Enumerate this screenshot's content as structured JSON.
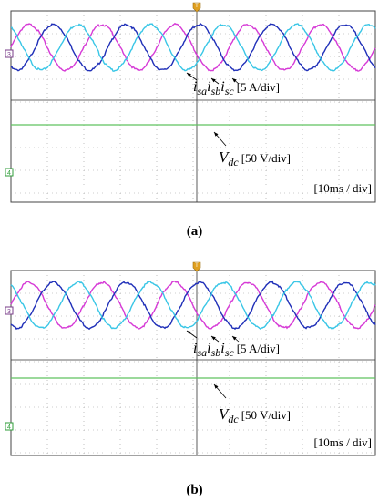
{
  "figure": {
    "panels": [
      {
        "label": "(a)",
        "marker": "T",
        "channels": [
          "3",
          "4"
        ],
        "current_label": {
          "parts": [
            "i",
            "sa",
            "i",
            "sb",
            "i",
            "sc"
          ],
          "scale": "[5 A/div]"
        },
        "voltage_label": {
          "parts": [
            "V",
            "dc"
          ],
          "scale": "[50 V/div]"
        },
        "timebase": "[10ms / div]"
      },
      {
        "label": "(b)",
        "marker": "T",
        "channels": [
          "3",
          "4"
        ],
        "current_label": {
          "parts": [
            "i",
            "sa",
            "i",
            "sb",
            "i",
            "sc"
          ],
          "scale": "[5 A/div]"
        },
        "voltage_label": {
          "parts": [
            "V",
            "dc"
          ],
          "scale": "[50 V/div]"
        },
        "timebase": "[10ms / div]"
      }
    ]
  },
  "colors": {
    "phase_a": "#d63ad6",
    "phase_b": "#1f2fb8",
    "phase_c": "#39c6e6",
    "vdc": "#5fc25f",
    "grid": "#9a9a9a",
    "channel3": "#7a3d8a",
    "channel4": "#2f9e3a",
    "marker": "#e0a020"
  },
  "chart_data": [
    {
      "type": "line",
      "panel": "(a)",
      "x_unit": "ms",
      "x_per_div": 10,
      "divisions": 10,
      "series": [
        {
          "name": "isa",
          "kind": "sine",
          "frequency_hz": 50,
          "amplitude_div": 1.0,
          "phase_deg": 0
        },
        {
          "name": "isb",
          "kind": "sine",
          "frequency_hz": 50,
          "amplitude_div": 1.0,
          "phase_deg": -120
        },
        {
          "name": "isc",
          "kind": "sine",
          "frequency_hz": 50,
          "amplitude_div": 1.0,
          "phase_deg": 120
        },
        {
          "name": "Vdc",
          "kind": "dc",
          "level_div": -2.1
        }
      ]
    },
    {
      "type": "line",
      "panel": "(b)",
      "x_unit": "ms",
      "x_per_div": 10,
      "divisions": 10,
      "series": [
        {
          "name": "isa",
          "kind": "sine",
          "frequency_hz": 50,
          "amplitude_div": 1.0,
          "phase_deg": 0
        },
        {
          "name": "isb",
          "kind": "sine",
          "frequency_hz": 50,
          "amplitude_div": 1.0,
          "phase_deg": -120
        },
        {
          "name": "isc",
          "kind": "sine",
          "frequency_hz": 50,
          "amplitude_div": 1.0,
          "phase_deg": 120
        },
        {
          "name": "Vdc",
          "kind": "dc",
          "level_div": -2.1
        }
      ]
    }
  ]
}
